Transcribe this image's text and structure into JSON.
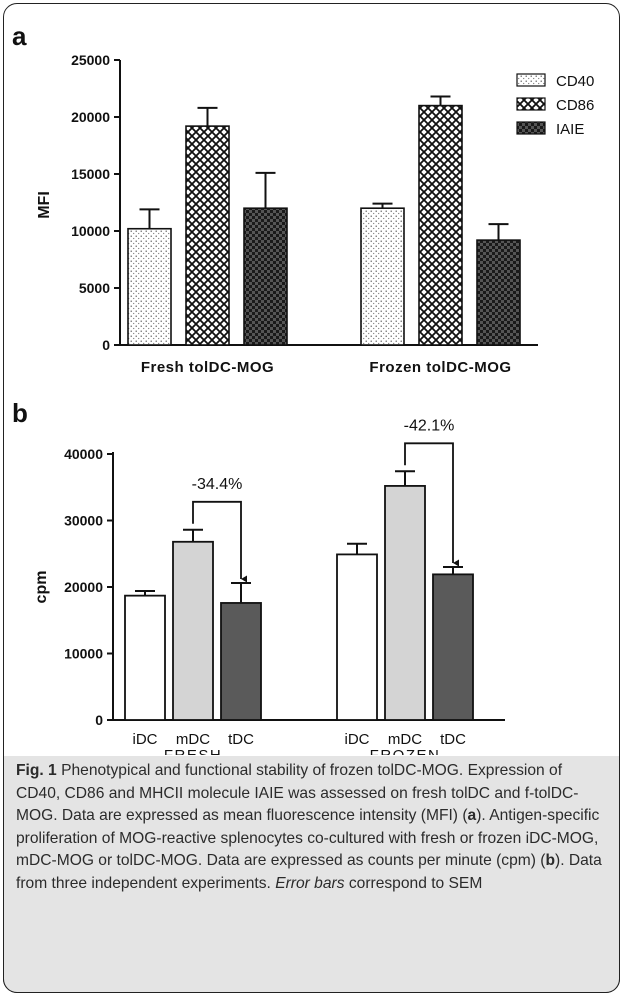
{
  "chart_data": [
    {
      "panel_label": "a",
      "type": "bar",
      "ylabel": "MFI",
      "ylim": [
        0,
        25000
      ],
      "yticks": [
        0,
        5000,
        10000,
        15000,
        20000,
        25000
      ],
      "ytick_labels": [
        "0",
        "5000",
        "10000",
        "15000",
        "20000",
        "25000"
      ],
      "categories": [
        "Fresh tolDC-MOG",
        "Frozen tolDC-MOG"
      ],
      "series": [
        {
          "name": "CD40",
          "values": [
            10200,
            12000
          ],
          "errors": [
            1700,
            400
          ],
          "pattern": "dots"
        },
        {
          "name": "CD86",
          "values": [
            19200,
            21000
          ],
          "errors": [
            1600,
            800
          ],
          "pattern": "crosshatch"
        },
        {
          "name": "IAIE",
          "values": [
            12000,
            9200
          ],
          "errors": [
            3100,
            1400
          ],
          "pattern": "checker"
        }
      ],
      "legend": "right"
    },
    {
      "panel_label": "b",
      "type": "bar",
      "ylabel": "cpm",
      "ylim": [
        0,
        40000
      ],
      "yticks": [
        0,
        10000,
        20000,
        30000,
        40000
      ],
      "ytick_labels": [
        "0",
        "10000",
        "20000",
        "30000",
        "40000"
      ],
      "groups": [
        {
          "name": "FRESH",
          "categories": [
            "iDC",
            "mDC",
            "tDC"
          ],
          "values": [
            18700,
            26800,
            17600
          ],
          "errors": [
            700,
            1800,
            3000
          ],
          "annotation": "-34.4%"
        },
        {
          "name": "FROZEN",
          "categories": [
            "iDC",
            "mDC",
            "tDC"
          ],
          "values": [
            24900,
            35200,
            21900
          ],
          "errors": [
            1600,
            2200,
            1100
          ],
          "annotation": "-42.1%"
        }
      ],
      "bar_colors": [
        "#ffffff",
        "#d4d4d4",
        "#5a5a5a"
      ]
    }
  ],
  "caption": {
    "fig_label": "Fig. 1",
    "title_rest": " Phenotypical and functional stability of frozen tolDC-MOG.",
    "text1": "Expression of CD40, CD86 and MHCII molecule IAIE was assessed on fresh tolDC and f-tolDC-MOG. Data are expressed as mean fluorescence intensity (MFI) (",
    "ref_a": "a",
    "text2": "). Antigen-specific proliferation of MOG-reactive splenocytes co-cultured with fresh or frozen iDC-MOG, mDC-MOG or tolDC-MOG. Data are expressed as counts per minute (cpm) (",
    "ref_b": "b",
    "text3": "). Data from three independent experiments. ",
    "error_bars_italic": "Error bars",
    "text4": " correspond to SEM"
  }
}
